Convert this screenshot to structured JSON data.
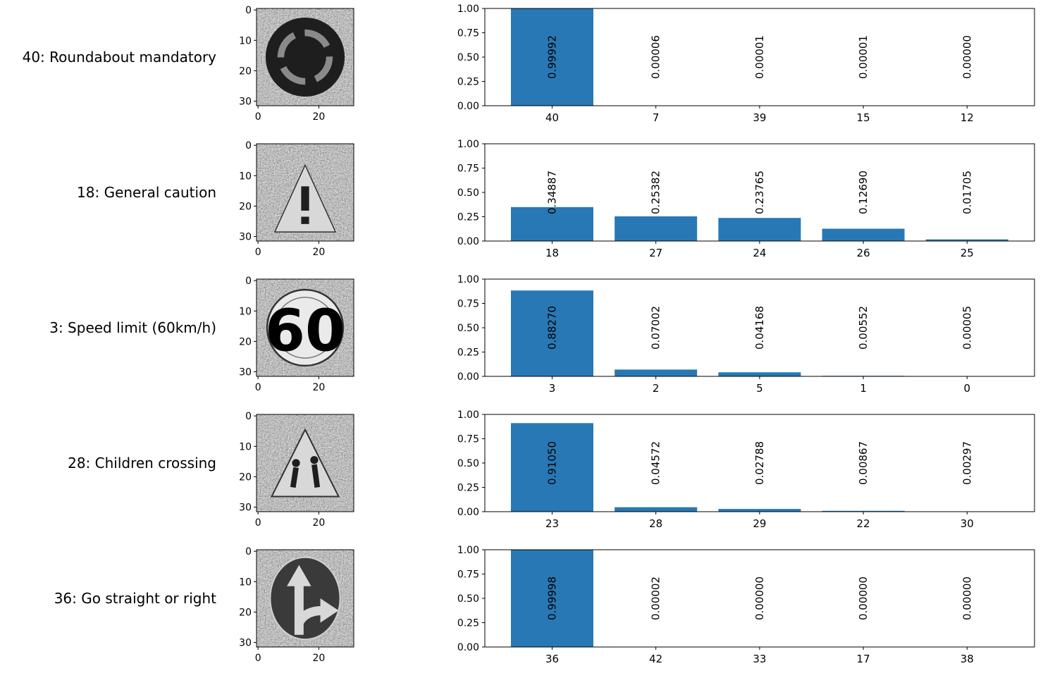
{
  "rows": [
    {
      "sign_label": "40: Roundabout mandatory",
      "image_icon": "roundabout-sign-icon"
    },
    {
      "sign_label": "18: General caution",
      "image_icon": "general-caution-sign-icon"
    },
    {
      "sign_label": "3: Speed limit (60km/h)",
      "image_icon": "speed-limit-60-sign-icon",
      "sign_text": "60"
    },
    {
      "sign_label": "28: Children crossing",
      "image_icon": "children-crossing-sign-icon"
    },
    {
      "sign_label": "36: Go straight or right",
      "image_icon": "go-straight-or-right-sign-icon"
    }
  ],
  "image_axis": {
    "y_ticks": [
      "0",
      "10",
      "20",
      "30"
    ],
    "x_ticks": [
      "0",
      "20"
    ]
  },
  "bar_color": "#2878b5",
  "chart_data": [
    {
      "type": "bar",
      "categories": [
        "40",
        "7",
        "39",
        "15",
        "12"
      ],
      "values": [
        0.99992,
        6e-05,
        1e-05,
        1e-05,
        0.0
      ],
      "labels": [
        "0.99992",
        "0.00006",
        "0.00001",
        "0.00001",
        "0.00000"
      ],
      "ylim": [
        0,
        1
      ],
      "yticks": [
        "0.00",
        "0.25",
        "0.50",
        "0.75",
        "1.00"
      ]
    },
    {
      "type": "bar",
      "categories": [
        "18",
        "27",
        "24",
        "26",
        "25"
      ],
      "values": [
        0.34887,
        0.25382,
        0.23765,
        0.1269,
        0.01705
      ],
      "labels": [
        "0.34887",
        "0.25382",
        "0.23765",
        "0.12690",
        "0.01705"
      ],
      "ylim": [
        0,
        1
      ],
      "yticks": [
        "0.00",
        "0.25",
        "0.50",
        "0.75",
        "1.00"
      ]
    },
    {
      "type": "bar",
      "categories": [
        "3",
        "2",
        "5",
        "1",
        "0"
      ],
      "values": [
        0.8827,
        0.07002,
        0.04168,
        0.00552,
        5e-05
      ],
      "labels": [
        "0.88270",
        "0.07002",
        "0.04168",
        "0.00552",
        "0.00005"
      ],
      "ylim": [
        0,
        1
      ],
      "yticks": [
        "0.00",
        "0.25",
        "0.50",
        "0.75",
        "1.00"
      ]
    },
    {
      "type": "bar",
      "categories": [
        "23",
        "28",
        "29",
        "22",
        "30"
      ],
      "values": [
        0.9105,
        0.04572,
        0.02788,
        0.00867,
        0.00297
      ],
      "labels": [
        "0.91050",
        "0.04572",
        "0.02788",
        "0.00867",
        "0.00297"
      ],
      "ylim": [
        0,
        1
      ],
      "yticks": [
        "0.00",
        "0.25",
        "0.50",
        "0.75",
        "1.00"
      ]
    },
    {
      "type": "bar",
      "categories": [
        "36",
        "42",
        "33",
        "17",
        "38"
      ],
      "values": [
        0.99998,
        2e-05,
        0.0,
        0.0,
        0.0
      ],
      "labels": [
        "0.99998",
        "0.00002",
        "0.00000",
        "0.00000",
        "0.00000"
      ],
      "ylim": [
        0,
        1
      ],
      "yticks": [
        "0.00",
        "0.25",
        "0.50",
        "0.75",
        "1.00"
      ]
    }
  ]
}
